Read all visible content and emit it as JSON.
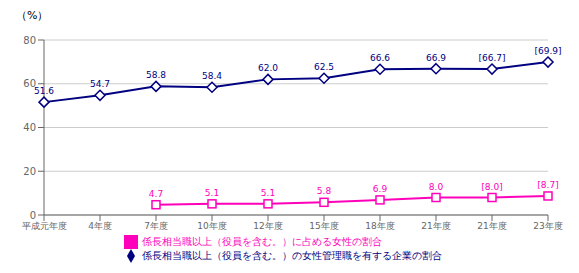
{
  "chart_data": {
    "type": "line",
    "ylabel": "（%）",
    "categories": [
      "平成元年度",
      "4年度",
      "7年度",
      "10年度",
      "12年度",
      "15年度",
      "18年度",
      "21年度",
      "21年度",
      "23年度"
    ],
    "series": [
      {
        "name": "係長相当職以上（役員を含む。）の女性管理職を有する企業の割合",
        "color": "#000080",
        "marker": "diamond",
        "values": [
          51.6,
          54.7,
          58.8,
          58.4,
          62.0,
          62.5,
          66.6,
          66.9,
          66.7,
          69.9
        ],
        "value_labels": [
          "51.6",
          "54.7",
          "58.8",
          "58.4",
          "62.0",
          "62.5",
          "66.6",
          "66.9",
          "[66.7]",
          "[69.9]"
        ]
      },
      {
        "name": "係長相当職以上（役員を含む。）に占める女性の割合",
        "color": "#FF00BB",
        "marker": "square",
        "values": [
          null,
          null,
          4.7,
          5.1,
          5.1,
          5.8,
          6.9,
          8.0,
          8.0,
          8.7
        ],
        "value_labels": [
          null,
          null,
          "4.7",
          "5.1",
          "5.1",
          "5.8",
          "6.9",
          "8.0",
          "[8.0]",
          "[8.7]"
        ]
      }
    ],
    "ylim": [
      0,
      80
    ],
    "yticks": [
      0,
      20,
      40,
      60,
      80
    ],
    "grid": true,
    "data_labels": true,
    "legend": "bottom"
  }
}
